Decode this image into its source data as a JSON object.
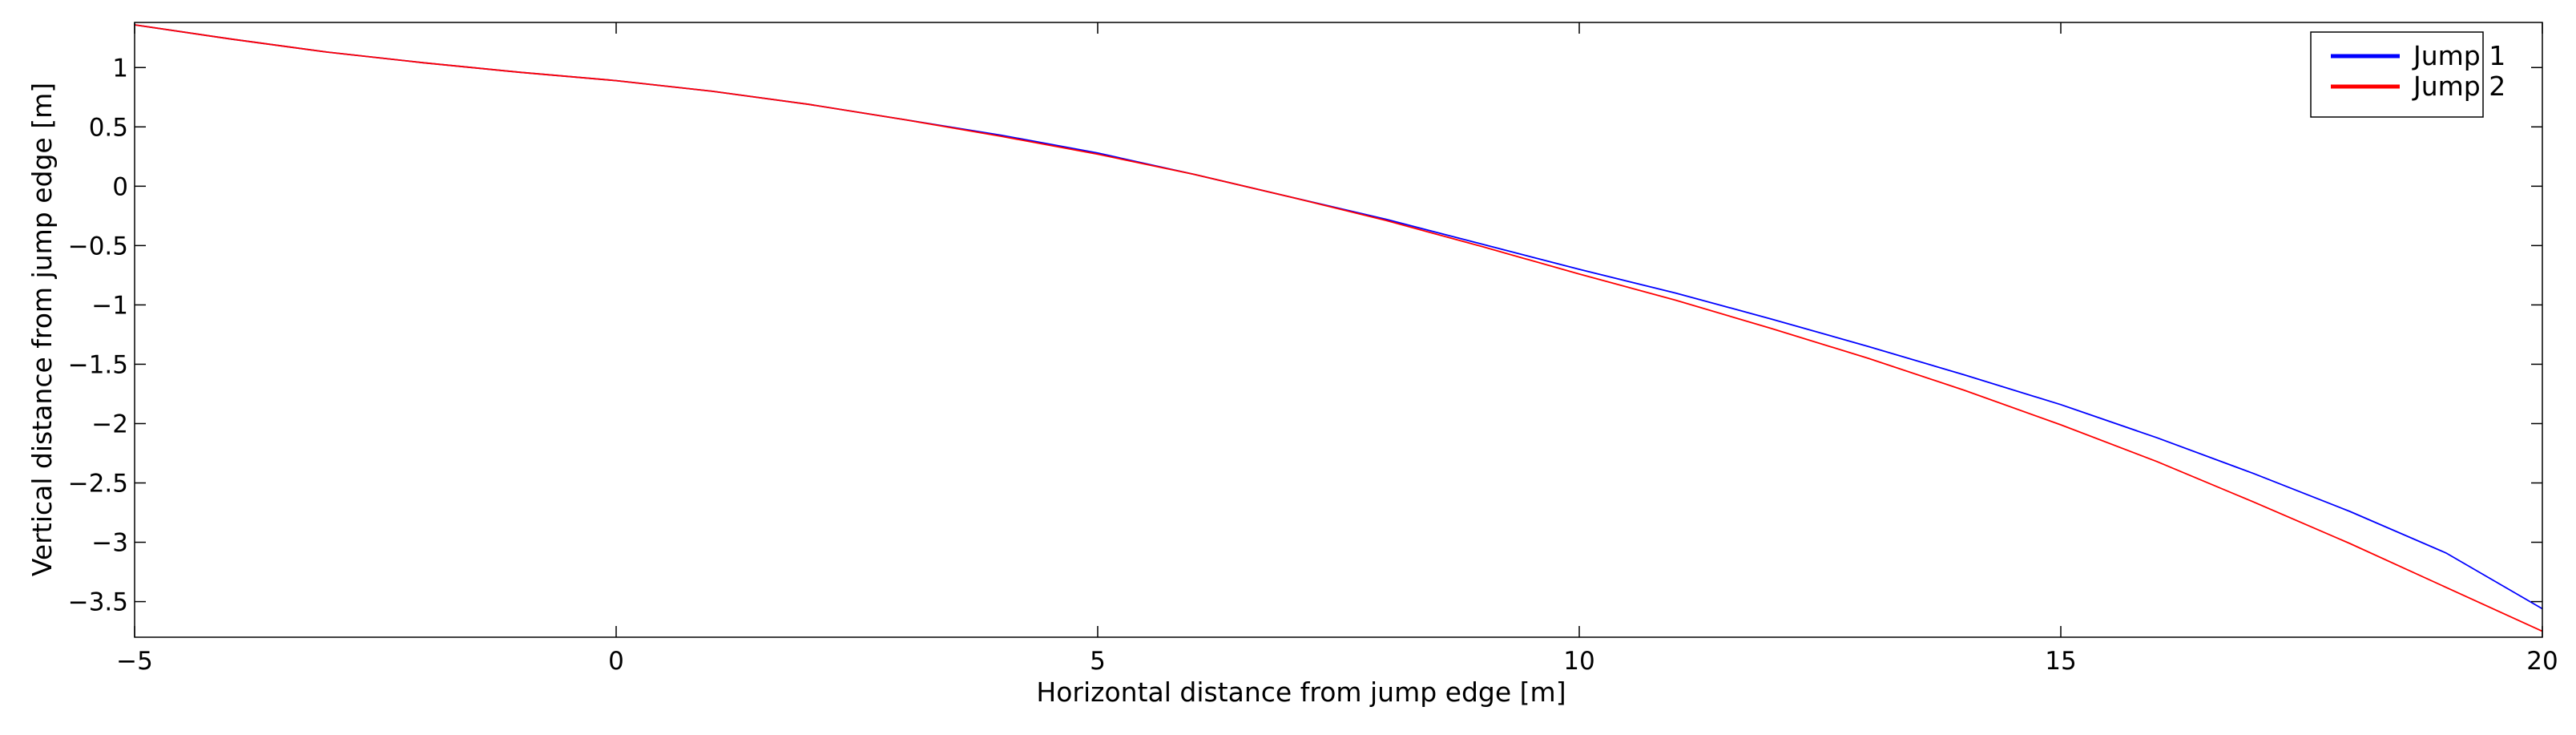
{
  "chart_data": {
    "type": "line",
    "title": "",
    "xlabel": "Horizontal distance from jump edge [m]",
    "ylabel": "Vertical distance from jump edge [m]",
    "xlim": [
      -5,
      20
    ],
    "ylim": [
      -3.8,
      1.38
    ],
    "xticks": [
      -5,
      0,
      5,
      10,
      15,
      20
    ],
    "xtick_labels": [
      "−5",
      "0",
      "5",
      "10",
      "15",
      "20"
    ],
    "yticks": [
      1,
      0.5,
      0,
      -0.5,
      -1,
      -1.5,
      -2,
      -2.5,
      -3,
      -3.5
    ],
    "ytick_labels": [
      "1",
      "0.5",
      "0",
      "−0.5",
      "−1",
      "−1.5",
      "−2",
      "−2.5",
      "−3",
      "−3.5"
    ],
    "grid": false,
    "legend_position": "top-right",
    "series": [
      {
        "name": "Jump 1",
        "color": "#0000ff",
        "x": [
          -5,
          -4,
          -3,
          -2,
          -1,
          0,
          1,
          2,
          3,
          4,
          5,
          6,
          7,
          8,
          9,
          10,
          11,
          12,
          13,
          14,
          15,
          16,
          17,
          18,
          19,
          20
        ],
        "y": [
          1.36,
          1.24,
          1.13,
          1.04,
          0.96,
          0.89,
          0.8,
          0.69,
          0.56,
          0.43,
          0.28,
          0.1,
          -0.09,
          -0.28,
          -0.49,
          -0.7,
          -0.9,
          -1.12,
          -1.35,
          -1.59,
          -1.84,
          -2.12,
          -2.42,
          -2.74,
          -3.09,
          -3.56
        ]
      },
      {
        "name": "Jump 2",
        "color": "#ff0000",
        "x": [
          -5,
          -4,
          -3,
          -2,
          -1,
          0,
          1,
          2,
          3,
          4,
          5,
          6,
          7,
          8,
          9,
          10,
          11,
          12,
          13,
          14,
          15,
          16,
          17,
          18,
          19,
          20
        ],
        "y": [
          1.36,
          1.24,
          1.13,
          1.04,
          0.96,
          0.89,
          0.8,
          0.69,
          0.56,
          0.42,
          0.27,
          0.1,
          -0.09,
          -0.29,
          -0.51,
          -0.74,
          -0.96,
          -1.2,
          -1.45,
          -1.72,
          -2.01,
          -2.32,
          -2.66,
          -3.01,
          -3.38,
          -3.75
        ]
      }
    ]
  }
}
